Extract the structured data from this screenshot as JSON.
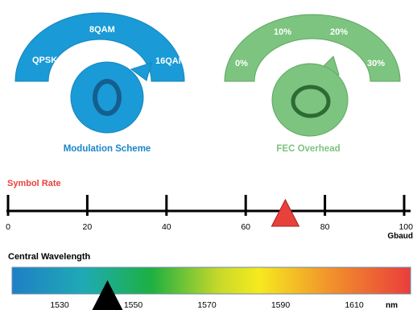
{
  "modulation": {
    "caption": "Modulation Scheme",
    "options": [
      "QPSK",
      "8QAM",
      "16QAM"
    ],
    "color": "#1a9ad6",
    "ring_color": "#155f8f"
  },
  "fec": {
    "caption": "FEC Overhead",
    "options": [
      "0%",
      "10%",
      "20%",
      "30%"
    ],
    "color": "#7cc47f",
    "ring_color": "#2d6a34"
  },
  "symbol_rate": {
    "title": "Symbol Rate",
    "ticks": [
      "0",
      "20",
      "40",
      "60",
      "80",
      "100"
    ],
    "unit": "Gbaud",
    "value": 70,
    "title_color": "#e8413c",
    "marker_color": "#e8413c"
  },
  "wavelength": {
    "title": "Central Wavelength",
    "ticks": [
      "1530",
      "1550",
      "1570",
      "1590",
      "1610"
    ],
    "unit": "nm",
    "value": 1543
  }
}
